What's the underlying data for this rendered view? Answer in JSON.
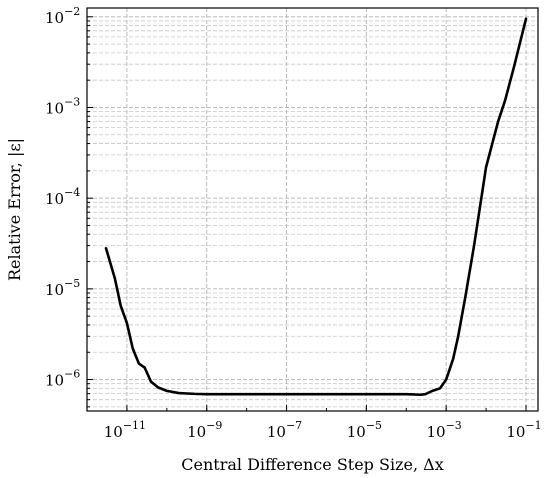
{
  "chart_data": {
    "type": "line",
    "title": "",
    "xlabel": "Central Difference Step Size, Δx",
    "ylabel": "Relative Error, |ε|",
    "xscale": "log",
    "yscale": "log",
    "xlim": [
      1e-12,
      0.2
    ],
    "ylim": [
      4.5e-07,
      0.0125
    ],
    "grid": "both",
    "legend": "none",
    "x_ticks": [
      {
        "value": 1e-11,
        "base": "10",
        "exp": "−11"
      },
      {
        "value": 1e-09,
        "base": "10",
        "exp": "−9"
      },
      {
        "value": 1e-07,
        "base": "10",
        "exp": "−7"
      },
      {
        "value": 1e-05,
        "base": "10",
        "exp": "−5"
      },
      {
        "value": 0.001,
        "base": "10",
        "exp": "−3"
      },
      {
        "value": 0.1,
        "base": "10",
        "exp": "−1"
      }
    ],
    "y_ticks": [
      {
        "value": 1e-06,
        "base": "10",
        "exp": "−6"
      },
      {
        "value": 1e-05,
        "base": "10",
        "exp": "−5"
      },
      {
        "value": 0.0001,
        "base": "10",
        "exp": "−4"
      },
      {
        "value": 0.001,
        "base": "10",
        "exp": "−3"
      },
      {
        "value": 0.01,
        "base": "10",
        "exp": "−2"
      }
    ],
    "series": [
      {
        "color": "#000000",
        "x": [
          3e-12,
          5e-12,
          7e-12,
          1e-11,
          1.4e-11,
          2e-11,
          2.8e-11,
          4e-11,
          6e-11,
          1e-10,
          2e-10,
          5e-10,
          1e-09,
          3e-09,
          1e-08,
          1e-07,
          1e-06,
          1e-05,
          4e-05,
          0.0001,
          0.00015,
          0.00022,
          0.0003,
          0.00045,
          0.0007,
          0.001,
          0.0015,
          0.002,
          0.003,
          0.005,
          0.01,
          0.02,
          0.03,
          0.05,
          0.1
        ],
        "y": [
          2.8e-05,
          1.3e-05,
          6.5e-06,
          4.2e-06,
          2.2e-06,
          1.5e-06,
          1.35e-06,
          9.5e-07,
          8.2e-07,
          7.5e-07,
          7.1e-07,
          6.95e-07,
          6.9e-07,
          6.9e-07,
          6.9e-07,
          6.9e-07,
          6.9e-07,
          6.9e-07,
          6.9e-07,
          6.9e-07,
          6.85e-07,
          6.8e-07,
          6.9e-07,
          7.5e-07,
          8e-07,
          1e-06,
          1.7e-06,
          3e-06,
          8e-06,
          3e-05,
          0.00022,
          0.0007,
          0.0012,
          0.0028,
          0.0095
        ]
      }
    ]
  }
}
